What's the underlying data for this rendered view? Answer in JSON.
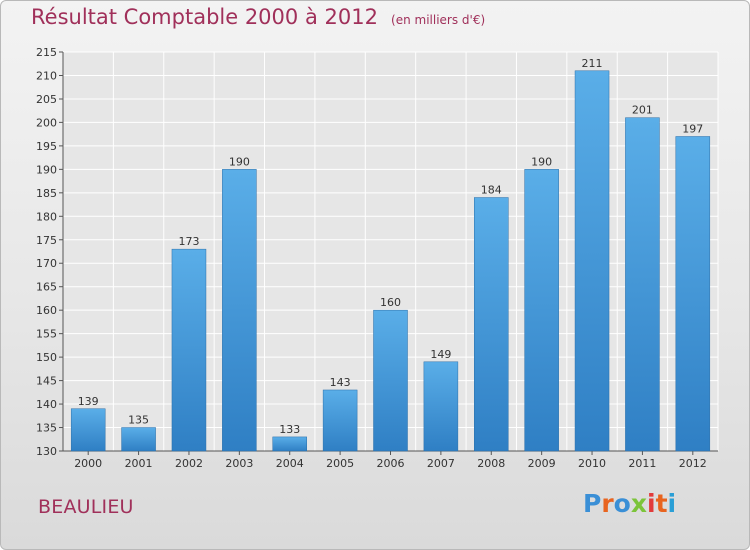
{
  "title": "Résultat Comptable 2000 à 2012",
  "subtitle": "(en milliers d'€)",
  "commune": "BEAULIEU",
  "logo": {
    "letters": [
      "P",
      "r",
      "o",
      "x",
      "i",
      "t",
      "i"
    ],
    "colors": [
      "#3a8fd6",
      "#e8641f",
      "#3a8fd6",
      "#7cc43a",
      "#e23b3b",
      "#e8641f",
      "#2a9fd6"
    ]
  },
  "chart_data": {
    "type": "bar",
    "title": "Résultat Comptable 2000 à 2012",
    "subtitle": "(en milliers d'€)",
    "categories": [
      "2000",
      "2001",
      "2002",
      "2003",
      "2004",
      "2005",
      "2006",
      "2007",
      "2008",
      "2009",
      "2010",
      "2011",
      "2012"
    ],
    "values": [
      139,
      135,
      173,
      190,
      133,
      143,
      160,
      149,
      184,
      190,
      211,
      201,
      197
    ],
    "ylim": [
      130,
      215
    ],
    "ytick_step": 5,
    "grid": true,
    "bar_color": "#4da0e0"
  }
}
